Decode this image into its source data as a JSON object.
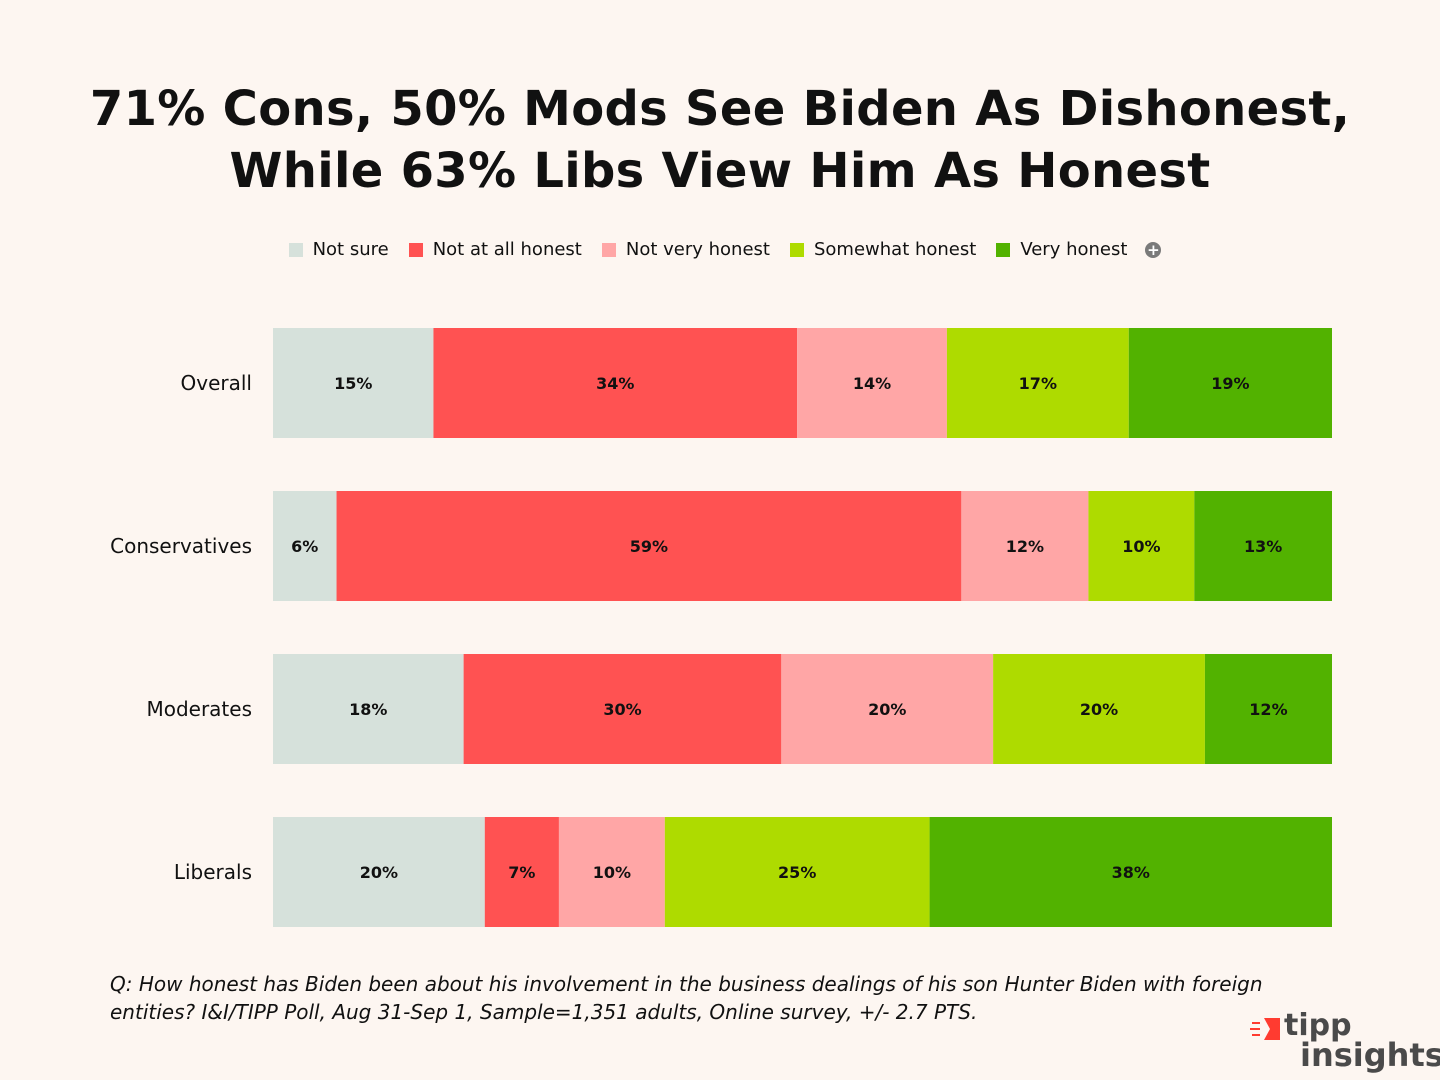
{
  "title": {
    "line1": "71% Cons, 50% Mods See Biden As Dishonest,",
    "line2": "While 63% Libs View Him As Honest"
  },
  "legend_more_icon": "plus-circle-icon",
  "chart_data": {
    "type": "bar",
    "orientation": "horizontal",
    "stacked": true,
    "stack_mode": "percent",
    "categories": [
      "Overall",
      "Conservatives",
      "Moderates",
      "Liberals"
    ],
    "series": [
      {
        "name": "Not sure",
        "color": "#d6e1db",
        "values": [
          15,
          6,
          18,
          20
        ]
      },
      {
        "name": "Not at all honest",
        "color": "#ff5252",
        "values": [
          34,
          59,
          30,
          7
        ]
      },
      {
        "name": "Not very honest",
        "color": "#ffa6a6",
        "values": [
          14,
          12,
          20,
          10
        ]
      },
      {
        "name": "Somewhat honest",
        "color": "#aedb00",
        "values": [
          17,
          10,
          20,
          25
        ]
      },
      {
        "name": "Very honest",
        "color": "#52b200",
        "values": [
          19,
          13,
          12,
          38
        ]
      }
    ],
    "data_labels": [
      [
        "15%",
        "34%",
        "14%",
        "17%",
        "19%"
      ],
      [
        "6%",
        "59%",
        "12%",
        "10%",
        "13%"
      ],
      [
        "18%",
        "30%",
        "20%",
        "20%",
        "12%"
      ],
      [
        "20%",
        "7%",
        "10%",
        "25%",
        "38%"
      ]
    ],
    "legend_position": "top-center"
  },
  "footnote": "Q: How honest has Biden been about his involvement in the business dealings of his son Hunter Biden with foreign entities? I&I/TIPP Poll, Aug 31-Sep 1, Sample=1,351 adults, Online survey, +/- 2.7 PTS.",
  "logo": {
    "line1": "tipp",
    "line2": "insights",
    "mark_color": "#ff3b30"
  }
}
